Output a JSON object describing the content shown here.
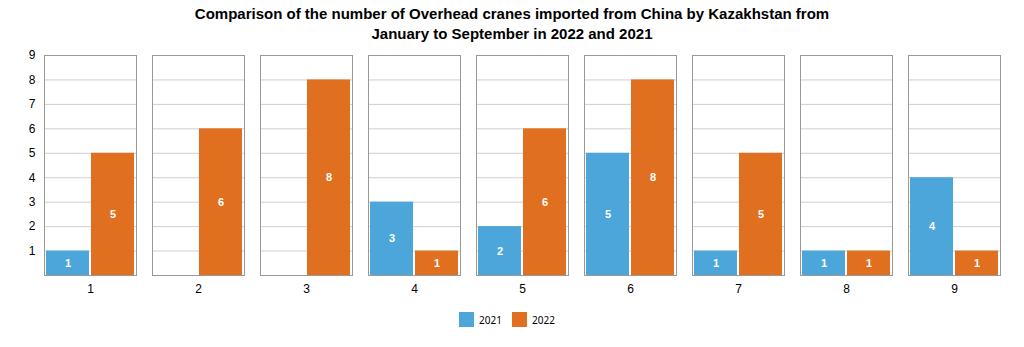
{
  "chart_data": {
    "type": "bar",
    "title": "Comparison of the number of Overhead cranes imported from China by Kazakhstan from\nJanuary to September in 2022 and 2021",
    "categories": [
      "1",
      "2",
      "3",
      "4",
      "5",
      "6",
      "7",
      "8",
      "9"
    ],
    "series": [
      {
        "name": "2021",
        "color": "#4da6d9",
        "values": [
          1,
          0,
          0,
          3,
          2,
          5,
          1,
          1,
          4
        ]
      },
      {
        "name": "2022",
        "color": "#e07020",
        "values": [
          5,
          6,
          8,
          1,
          6,
          8,
          5,
          1,
          1
        ]
      }
    ],
    "ylim": [
      0,
      9
    ],
    "yticks": [
      1,
      2,
      3,
      4,
      5,
      6,
      7,
      8,
      9
    ],
    "grid": true,
    "legend": "bottom",
    "data_labels": true
  }
}
